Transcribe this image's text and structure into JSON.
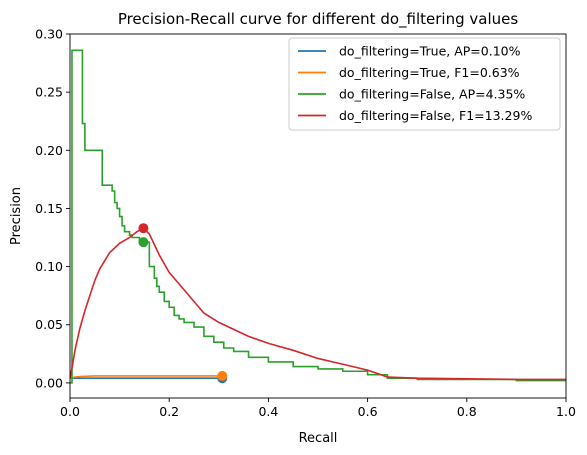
{
  "chart_data": {
    "type": "line",
    "title": "Precision-Recall curve for different do_filtering values",
    "xlabel": "Recall",
    "ylabel": "Precision",
    "xlim": [
      0.0,
      1.0
    ],
    "ylim": [
      -0.013,
      0.3
    ],
    "xticks": [
      "0.0",
      "0.2",
      "0.4",
      "0.6",
      "0.8",
      "1.0"
    ],
    "xtick_values": [
      0.0,
      0.2,
      0.4,
      0.6,
      0.8,
      1.0
    ],
    "yticks": [
      "0.00",
      "0.05",
      "0.10",
      "0.15",
      "0.20",
      "0.25",
      "0.30"
    ],
    "ytick_values": [
      0.0,
      0.05,
      0.1,
      0.15,
      0.2,
      0.25,
      0.3
    ],
    "grid": false,
    "legend_position": "top-right",
    "series": [
      {
        "name": "do_filtering=True, AP=0.10%",
        "color": "#1f77b4",
        "step": true,
        "x": [
          0.0,
          0.307
        ],
        "y": [
          0.004,
          0.004
        ],
        "marker": {
          "x": 0.307,
          "y": 0.004
        }
      },
      {
        "name": "do_filtering=True, F1=0.63%",
        "color": "#ff7f0e",
        "step": false,
        "x": [
          0.0,
          0.01,
          0.02,
          0.05,
          0.1,
          0.2,
          0.307
        ],
        "y": [
          0.004,
          0.005,
          0.0055,
          0.006,
          0.006,
          0.006,
          0.006
        ],
        "marker": {
          "x": 0.307,
          "y": 0.006
        }
      },
      {
        "name": "do_filtering=False, AP=4.35%",
        "color": "#2ca02c",
        "step": true,
        "x": [
          0.0,
          0.004,
          0.022,
          0.025,
          0.03,
          0.06,
          0.065,
          0.075,
          0.085,
          0.09,
          0.095,
          0.1,
          0.105,
          0.11,
          0.115,
          0.12,
          0.125,
          0.13,
          0.14,
          0.148,
          0.16,
          0.17,
          0.175,
          0.18,
          0.19,
          0.2,
          0.21,
          0.22,
          0.23,
          0.25,
          0.27,
          0.29,
          0.31,
          0.33,
          0.36,
          0.4,
          0.45,
          0.5,
          0.55,
          0.6,
          0.64,
          0.7,
          0.8,
          0.9,
          1.0
        ],
        "y": [
          0.0,
          0.286,
          0.286,
          0.223,
          0.2,
          0.2,
          0.17,
          0.17,
          0.165,
          0.155,
          0.15,
          0.143,
          0.135,
          0.13,
          0.13,
          0.127,
          0.125,
          0.125,
          0.122,
          0.121,
          0.1,
          0.09,
          0.083,
          0.078,
          0.07,
          0.065,
          0.058,
          0.055,
          0.052,
          0.048,
          0.04,
          0.035,
          0.03,
          0.027,
          0.022,
          0.018,
          0.014,
          0.012,
          0.01,
          0.007,
          0.004,
          0.003,
          0.003,
          0.002,
          0.002
        ],
        "marker": {
          "x": 0.148,
          "y": 0.121
        }
      },
      {
        "name": "do_filtering=False, F1=13.29%",
        "color": "#d62728",
        "step": false,
        "x": [
          0.0,
          0.005,
          0.01,
          0.02,
          0.03,
          0.04,
          0.05,
          0.06,
          0.08,
          0.1,
          0.12,
          0.135,
          0.148,
          0.16,
          0.18,
          0.2,
          0.22,
          0.25,
          0.27,
          0.3,
          0.33,
          0.36,
          0.4,
          0.45,
          0.5,
          0.55,
          0.6,
          0.64,
          0.7,
          0.8,
          0.9,
          1.0
        ],
        "y": [
          0.004,
          0.015,
          0.028,
          0.047,
          0.062,
          0.075,
          0.088,
          0.098,
          0.112,
          0.12,
          0.125,
          0.13,
          0.133,
          0.128,
          0.11,
          0.095,
          0.085,
          0.07,
          0.06,
          0.052,
          0.046,
          0.04,
          0.034,
          0.028,
          0.021,
          0.016,
          0.011,
          0.005,
          0.004,
          0.0035,
          0.003,
          0.003
        ],
        "marker": {
          "x": 0.148,
          "y": 0.133
        }
      }
    ]
  }
}
